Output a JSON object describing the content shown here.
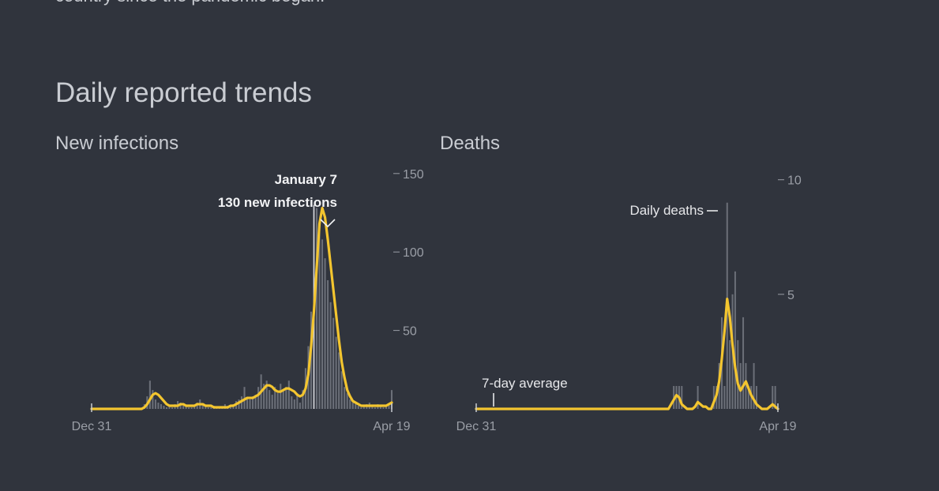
{
  "intro_text": "country since the pandemic began.",
  "section_title": "Daily reported trends",
  "colors": {
    "background": "#30343d",
    "average_line": "#f3c52f",
    "daily_bars": "#6b6f78",
    "text": "#c9ccd2"
  },
  "chart_data": [
    {
      "type": "bar",
      "title": "New infections",
      "xlabel": "",
      "ylabel": "",
      "x_ticks": [
        "Dec 31",
        "Apr 19"
      ],
      "y_ticks": [
        50,
        100,
        150
      ],
      "ylim": [
        0,
        165
      ],
      "annotation": {
        "date_label": "January 7",
        "value_label": "130 new infections",
        "peak_index": 80
      },
      "series": [
        {
          "type": "bar",
          "values": [
            0,
            0,
            0,
            0,
            0,
            0,
            0,
            0,
            0,
            0,
            0,
            0,
            0,
            0,
            0,
            0,
            0,
            0,
            0,
            3,
            8,
            18,
            12,
            6,
            4,
            3,
            2,
            1,
            2,
            1,
            3,
            5,
            4,
            2,
            2,
            1,
            1,
            2,
            4,
            6,
            3,
            2,
            1,
            1,
            2,
            1,
            1,
            1,
            3,
            2,
            2,
            3,
            5,
            6,
            8,
            14,
            7,
            6,
            8,
            9,
            14,
            22,
            16,
            18,
            12,
            9,
            14,
            10,
            16,
            12,
            14,
            18,
            8,
            6,
            10,
            4,
            12,
            26,
            40,
            62,
            130,
            128,
            120,
            108,
            96,
            82,
            68,
            58,
            46,
            36,
            24,
            14,
            10,
            6,
            4,
            3,
            2,
            1,
            2,
            3,
            4,
            2,
            1,
            3,
            2,
            1,
            2,
            3,
            12
          ]
        },
        {
          "type": "line",
          "values": [
            0,
            0,
            0,
            0,
            0,
            0,
            0,
            0,
            0,
            0,
            0,
            0,
            0,
            0,
            0,
            0,
            0,
            0,
            0,
            1,
            3,
            6,
            9,
            10,
            9,
            7,
            5,
            3,
            2,
            2,
            2,
            2,
            3,
            3,
            2,
            2,
            2,
            2,
            3,
            3,
            3,
            2,
            2,
            2,
            1,
            1,
            1,
            1,
            1,
            1,
            2,
            2,
            3,
            4,
            5,
            6,
            7,
            7,
            7,
            8,
            9,
            11,
            13,
            15,
            15,
            14,
            12,
            11,
            11,
            12,
            13,
            13,
            12,
            11,
            9,
            8,
            9,
            13,
            22,
            40,
            62,
            90,
            118,
            128,
            122,
            108,
            92,
            76,
            60,
            44,
            30,
            20,
            12,
            8,
            5,
            4,
            3,
            2,
            2,
            2,
            2,
            2,
            2,
            2,
            2,
            2,
            2,
            3,
            4
          ]
        }
      ]
    },
    {
      "type": "bar",
      "title": "Deaths",
      "xlabel": "",
      "ylabel": "",
      "x_ticks": [
        "Dec 31",
        "Apr 19"
      ],
      "y_ticks": [
        5,
        10
      ],
      "ylim": [
        0,
        10.3
      ],
      "annotations": {
        "daily_label": "Daily deaths",
        "average_label": "7-day average"
      },
      "series": [
        {
          "type": "bar",
          "values": [
            0,
            0,
            0,
            0,
            0,
            0,
            0,
            0,
            0,
            0,
            0,
            0,
            0,
            0,
            0,
            0,
            0,
            0,
            0,
            0,
            0,
            0,
            0,
            0,
            0,
            0,
            0,
            0,
            0,
            0,
            0,
            0,
            0,
            0,
            0,
            0,
            0,
            0,
            0,
            0,
            0,
            0,
            0,
            0,
            0,
            0,
            0,
            0,
            0,
            0,
            0,
            0,
            0,
            0,
            0,
            0,
            0,
            0,
            0,
            0,
            0,
            0,
            0,
            0,
            0,
            0,
            0,
            0,
            0,
            0,
            0,
            0,
            0,
            0,
            1,
            1,
            1,
            1,
            0,
            0,
            0,
            0,
            0,
            1,
            0,
            0,
            0,
            0,
            0,
            1,
            1,
            2,
            4,
            1,
            9,
            3,
            5,
            6,
            3,
            2,
            4,
            2,
            1,
            1,
            2,
            1,
            0,
            0,
            0,
            0,
            0,
            1,
            1,
            0
          ]
        },
        {
          "type": "line",
          "values": [
            0,
            0,
            0,
            0,
            0,
            0,
            0,
            0,
            0,
            0,
            0,
            0,
            0,
            0,
            0,
            0,
            0,
            0,
            0,
            0,
            0,
            0,
            0,
            0,
            0,
            0,
            0,
            0,
            0,
            0,
            0,
            0,
            0,
            0,
            0,
            0,
            0,
            0,
            0,
            0,
            0,
            0,
            0,
            0,
            0,
            0,
            0,
            0,
            0,
            0,
            0,
            0,
            0,
            0,
            0,
            0,
            0,
            0,
            0,
            0,
            0,
            0,
            0,
            0,
            0,
            0,
            0,
            0,
            0,
            0,
            0,
            0,
            0,
            0.2,
            0.4,
            0.6,
            0.5,
            0.2,
            0.1,
            0,
            0,
            0,
            0.1,
            0.3,
            0.2,
            0.1,
            0.1,
            0,
            0,
            0.3,
            0.6,
            1.2,
            2.2,
            3.4,
            4.8,
            4.0,
            2.8,
            1.8,
            1.1,
            0.8,
            1.0,
            1.2,
            0.9,
            0.6,
            0.4,
            0.2,
            0.1,
            0,
            0,
            0,
            0.1,
            0.2,
            0.1,
            0
          ]
        }
      ]
    }
  ]
}
